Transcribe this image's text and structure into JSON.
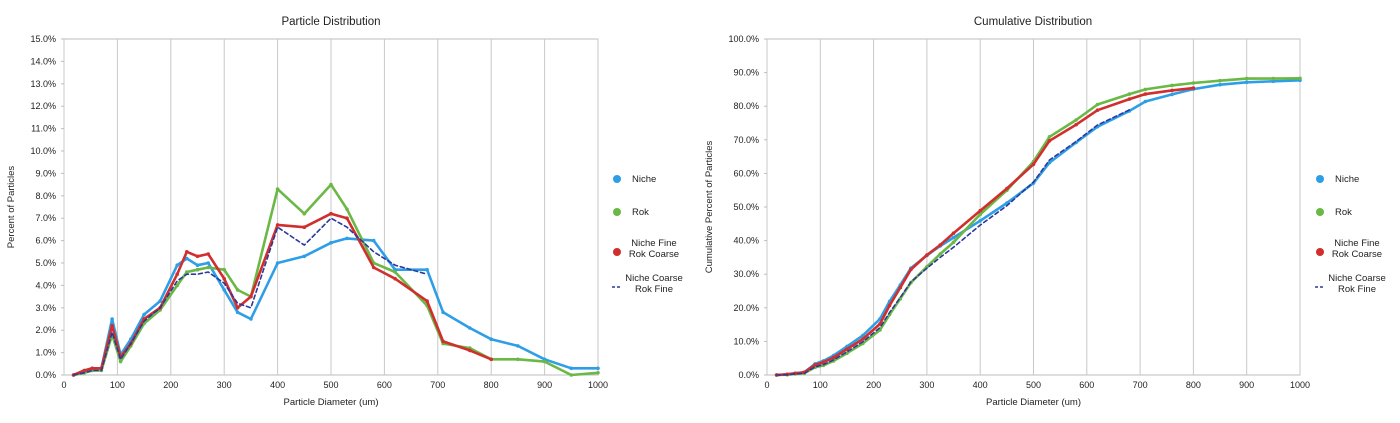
{
  "chart_data": [
    {
      "type": "line",
      "title": "Particle Distribution",
      "xlabel": "Particle Diameter (um)",
      "ylabel": "Percent of Particles",
      "xlim": [
        0,
        1000
      ],
      "ylim": [
        0,
        15
      ],
      "x_ticks": [
        0,
        100,
        200,
        300,
        400,
        500,
        600,
        700,
        800,
        900,
        1000
      ],
      "y_ticks": [
        "0.0%",
        "1.0%",
        "2.0%",
        "3.0%",
        "4.0%",
        "5.0%",
        "6.0%",
        "7.0%",
        "8.0%",
        "9.0%",
        "10.0%",
        "11.0%",
        "12.0%",
        "13.0%",
        "14.0%",
        "15.0%"
      ],
      "grid": "vertical",
      "legend_position": "right",
      "series": [
        {
          "name": "Niche",
          "color": "#2e9ee6",
          "style": "solid",
          "marker": true,
          "x": [
            18,
            38,
            53,
            70,
            90,
            106,
            125,
            150,
            180,
            212,
            230,
            250,
            270,
            300,
            325,
            350,
            400,
            450,
            500,
            530,
            580,
            620,
            680,
            710,
            760,
            800,
            850,
            900,
            950,
            1000
          ],
          "y": [
            0.0,
            0.2,
            0.3,
            0.3,
            2.5,
            0.9,
            1.6,
            2.7,
            3.3,
            4.9,
            5.2,
            4.9,
            5.0,
            3.8,
            2.8,
            2.5,
            5.0,
            5.3,
            5.9,
            6.1,
            6.0,
            4.7,
            4.7,
            2.8,
            2.1,
            1.6,
            1.3,
            0.7,
            0.3,
            0.3
          ]
        },
        {
          "name": "Rok",
          "color": "#6ab845",
          "style": "solid",
          "marker": true,
          "x": [
            18,
            38,
            53,
            70,
            90,
            106,
            125,
            150,
            180,
            212,
            230,
            250,
            270,
            300,
            325,
            350,
            400,
            450,
            500,
            530,
            580,
            620,
            680,
            710,
            760,
            800,
            850,
            900,
            950,
            1000
          ],
          "y": [
            0.0,
            0.1,
            0.2,
            0.2,
            1.8,
            0.6,
            1.3,
            2.3,
            2.9,
            4.0,
            4.6,
            4.7,
            4.8,
            4.7,
            3.8,
            3.5,
            8.3,
            7.2,
            8.5,
            7.4,
            5.0,
            4.6,
            3.1,
            1.4,
            1.2,
            0.7,
            0.7,
            0.6,
            0.0,
            0.1
          ]
        },
        {
          "name": "Niche Fine Rok Coarse",
          "color": "#d12e2e",
          "style": "solid",
          "marker": true,
          "x": [
            18,
            38,
            53,
            70,
            90,
            106,
            125,
            150,
            180,
            212,
            230,
            250,
            270,
            300,
            325,
            350,
            400,
            450,
            500,
            530,
            580,
            620,
            680,
            710,
            760,
            800
          ],
          "y": [
            0.0,
            0.2,
            0.3,
            0.3,
            2.2,
            0.8,
            1.4,
            2.5,
            3.0,
            4.5,
            5.5,
            5.3,
            5.4,
            4.3,
            3.0,
            3.5,
            6.7,
            6.6,
            7.2,
            7.0,
            4.8,
            4.3,
            3.3,
            1.5,
            1.1,
            0.7
          ]
        },
        {
          "name": "Niche Coarse Rok Fine",
          "color": "#2a3a9c",
          "style": "dashed",
          "marker": false,
          "x": [
            18,
            38,
            53,
            70,
            90,
            106,
            125,
            150,
            180,
            212,
            230,
            250,
            270,
            300,
            325,
            350,
            400,
            450,
            500,
            530,
            580,
            620,
            680
          ],
          "y": [
            0.0,
            0.1,
            0.2,
            0.2,
            1.9,
            0.7,
            1.4,
            2.4,
            3.0,
            4.2,
            4.5,
            4.5,
            4.6,
            4.1,
            3.2,
            3.0,
            6.6,
            5.8,
            7.0,
            6.6,
            5.5,
            4.9,
            4.5
          ]
        }
      ]
    },
    {
      "type": "line",
      "title": "Cumulative Distribution",
      "xlabel": "Particle Diameter (um)",
      "ylabel": "Cumulative Percent of Particles",
      "xlim": [
        0,
        1000
      ],
      "ylim": [
        0,
        100
      ],
      "x_ticks": [
        0,
        100,
        200,
        300,
        400,
        500,
        600,
        700,
        800,
        900,
        1000
      ],
      "y_ticks": [
        "0.0%",
        "10.0%",
        "20.0%",
        "30.0%",
        "40.0%",
        "50.0%",
        "60.0%",
        "70.0%",
        "80.0%",
        "90.0%",
        "100.0%"
      ],
      "grid": "vertical",
      "legend_position": "right",
      "series": [
        {
          "name": "Niche",
          "color": "#2e9ee6",
          "style": "solid",
          "marker": true,
          "x": [
            18,
            38,
            53,
            70,
            90,
            106,
            125,
            150,
            180,
            212,
            230,
            250,
            270,
            300,
            325,
            350,
            400,
            450,
            500,
            530,
            580,
            620,
            680,
            710,
            760,
            800,
            850,
            900,
            950,
            1000
          ],
          "y": [
            0.0,
            0.2,
            0.5,
            0.8,
            3.3,
            4.2,
            5.8,
            8.5,
            11.8,
            16.7,
            21.9,
            26.8,
            31.8,
            35.6,
            38.4,
            40.9,
            45.9,
            51.2,
            57.1,
            63.2,
            69.2,
            73.9,
            78.6,
            81.4,
            83.5,
            85.1,
            86.4,
            87.1,
            87.4,
            87.7
          ]
        },
        {
          "name": "Rok",
          "color": "#6ab845",
          "style": "solid",
          "marker": true,
          "x": [
            18,
            38,
            53,
            70,
            90,
            106,
            125,
            150,
            180,
            212,
            230,
            250,
            270,
            300,
            325,
            350,
            400,
            450,
            500,
            530,
            580,
            620,
            680,
            710,
            760,
            800,
            850,
            900,
            950,
            1000
          ],
          "y": [
            0.0,
            0.1,
            0.3,
            0.5,
            2.3,
            2.9,
            4.2,
            6.5,
            9.4,
            13.4,
            18.0,
            22.7,
            27.5,
            32.2,
            36.0,
            39.5,
            47.8,
            55.0,
            63.5,
            70.9,
            75.9,
            80.5,
            83.6,
            85.0,
            86.2,
            86.9,
            87.6,
            88.2,
            88.2,
            88.3
          ]
        },
        {
          "name": "Niche Fine Rok Coarse",
          "color": "#d12e2e",
          "style": "solid",
          "marker": true,
          "x": [
            18,
            38,
            53,
            70,
            90,
            106,
            125,
            150,
            180,
            212,
            230,
            250,
            270,
            300,
            325,
            350,
            400,
            450,
            500,
            530,
            580,
            620,
            680,
            710,
            760,
            800
          ],
          "y": [
            0.0,
            0.2,
            0.5,
            0.8,
            3.0,
            3.8,
            5.2,
            7.7,
            10.7,
            15.2,
            20.7,
            26.0,
            31.4,
            35.7,
            38.7,
            42.2,
            48.9,
            55.5,
            62.7,
            69.7,
            74.5,
            78.8,
            82.1,
            83.6,
            84.7,
            85.4
          ]
        },
        {
          "name": "Niche Coarse Rok Fine",
          "color": "#2a3a9c",
          "style": "dashed",
          "marker": false,
          "x": [
            18,
            38,
            53,
            70,
            90,
            106,
            125,
            150,
            180,
            212,
            230,
            250,
            270,
            300,
            325,
            350,
            400,
            450,
            500,
            530,
            580,
            620,
            680
          ],
          "y": [
            0.0,
            0.1,
            0.3,
            0.5,
            2.4,
            3.1,
            4.5,
            6.9,
            9.9,
            14.1,
            18.6,
            23.1,
            27.7,
            31.8,
            35.0,
            38.0,
            44.6,
            50.4,
            57.4,
            64.0,
            69.5,
            74.4,
            78.9
          ]
        }
      ]
    }
  ]
}
